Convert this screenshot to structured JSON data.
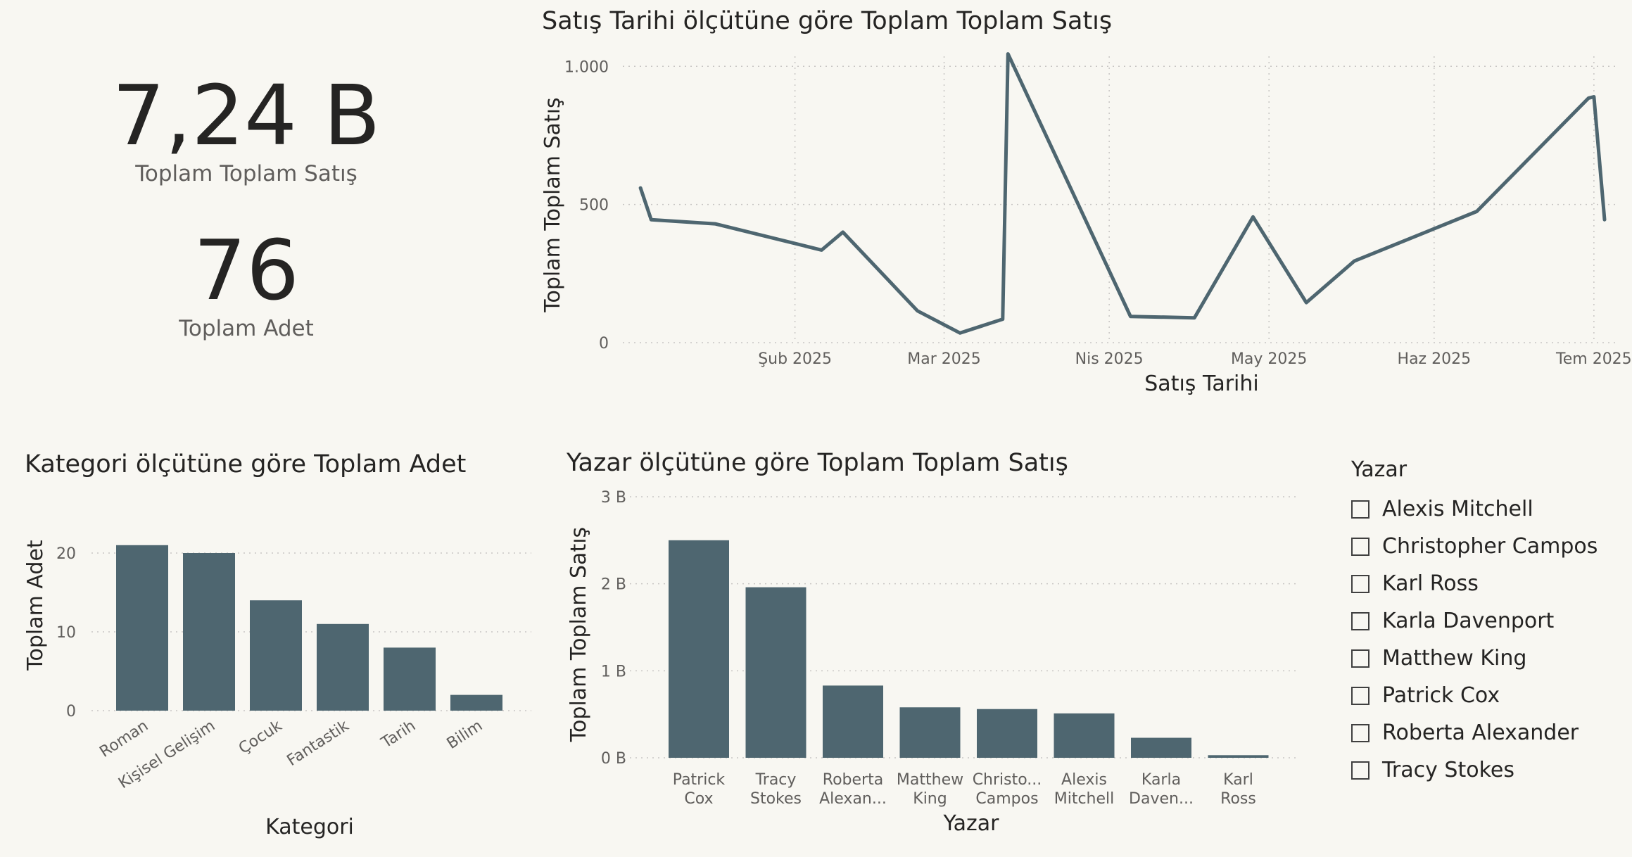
{
  "kpis": [
    {
      "value": "7,24 B",
      "label": "Toplam Toplam Satış"
    },
    {
      "value": "76",
      "label": "Toplam Adet"
    }
  ],
  "colors": {
    "bar": "#4e6670",
    "line": "#4e6670",
    "grid": "#c8c6c4",
    "axis_text": "#605e5c",
    "title": "#252423"
  },
  "chart_data": [
    {
      "type": "line",
      "title": "Satış Tarihi ölçütüne göre Toplam Toplam Satış",
      "xlabel": "Satış Tarihi",
      "ylabel": "Toplam Toplam Satış",
      "x_ticks": [
        {
          "date": "2025-02-01",
          "label": "Şub 2025"
        },
        {
          "date": "2025-03-01",
          "label": "Mar 2025"
        },
        {
          "date": "2025-04-01",
          "label": "Nis 2025"
        },
        {
          "date": "2025-05-01",
          "label": "May 2025"
        },
        {
          "date": "2025-06-01",
          "label": "Haz 2025"
        },
        {
          "date": "2025-07-01",
          "label": "Tem 2025"
        }
      ],
      "y_ticks": [
        {
          "value": 0,
          "label": "0"
        },
        {
          "value": 500,
          "label": "500"
        },
        {
          "value": 1000,
          "label": "1.000"
        }
      ],
      "ylim": [
        0,
        1100
      ],
      "xlim": [
        "2025-01-01",
        "2025-07-03"
      ],
      "grid": true,
      "points": [
        {
          "x": "2025-01-03",
          "y": 560
        },
        {
          "x": "2025-01-05",
          "y": 445
        },
        {
          "x": "2025-01-17",
          "y": 430
        },
        {
          "x": "2025-02-06",
          "y": 335
        },
        {
          "x": "2025-02-10",
          "y": 400
        },
        {
          "x": "2025-02-24",
          "y": 115
        },
        {
          "x": "2025-03-04",
          "y": 35
        },
        {
          "x": "2025-03-12",
          "y": 85
        },
        {
          "x": "2025-03-13",
          "y": 1045
        },
        {
          "x": "2025-04-05",
          "y": 95
        },
        {
          "x": "2025-04-17",
          "y": 90
        },
        {
          "x": "2025-04-28",
          "y": 455
        },
        {
          "x": "2025-05-08",
          "y": 145
        },
        {
          "x": "2025-05-17",
          "y": 295
        },
        {
          "x": "2025-06-09",
          "y": 475
        },
        {
          "x": "2025-06-30",
          "y": 885
        },
        {
          "x": "2025-07-01",
          "y": 890
        },
        {
          "x": "2025-07-03",
          "y": 445
        }
      ]
    },
    {
      "type": "bar",
      "title": "Kategori ölçütüne göre Toplam Adet",
      "xlabel": "Kategori",
      "ylabel": "Toplam Adet",
      "categories": [
        "Roman",
        "Kişisel Gelişim",
        "Çocuk",
        "Fantastik",
        "Tarih",
        "Bilim"
      ],
      "values": [
        21,
        20,
        14,
        11,
        8,
        2
      ],
      "y_ticks": [
        {
          "value": 0,
          "label": "0"
        },
        {
          "value": 10,
          "label": "10"
        },
        {
          "value": 20,
          "label": "20"
        }
      ],
      "ylim": [
        0,
        25
      ],
      "grid": true
    },
    {
      "type": "bar",
      "title": "Yazar ölçütüne göre Toplam Toplam Satış",
      "xlabel": "Yazar",
      "ylabel": "Toplam Toplam Satış",
      "categories": [
        [
          "Patrick",
          "Cox"
        ],
        [
          "Tracy",
          "Stokes"
        ],
        [
          "Roberta",
          "Alexan..."
        ],
        [
          "Matthew",
          "King"
        ],
        [
          "Christo...",
          "Campos"
        ],
        [
          "Alexis",
          "Mitchell"
        ],
        [
          "Karla",
          "Daven..."
        ],
        [
          "Karl",
          "Ross"
        ]
      ],
      "values": [
        2.5,
        1.96,
        0.83,
        0.58,
        0.56,
        0.51,
        0.23,
        0.03
      ],
      "y_ticks": [
        {
          "value": 0,
          "label": "0 B"
        },
        {
          "value": 1,
          "label": "1 B"
        },
        {
          "value": 2,
          "label": "2 B"
        },
        {
          "value": 3,
          "label": "3 B"
        }
      ],
      "ylim": [
        0,
        3
      ],
      "grid": true
    }
  ],
  "slicer": {
    "title": "Yazar",
    "items": [
      "Alexis Mitchell",
      "Christopher Campos",
      "Karl Ross",
      "Karla Davenport",
      "Matthew King",
      "Patrick Cox",
      "Roberta Alexander",
      "Tracy Stokes"
    ]
  }
}
